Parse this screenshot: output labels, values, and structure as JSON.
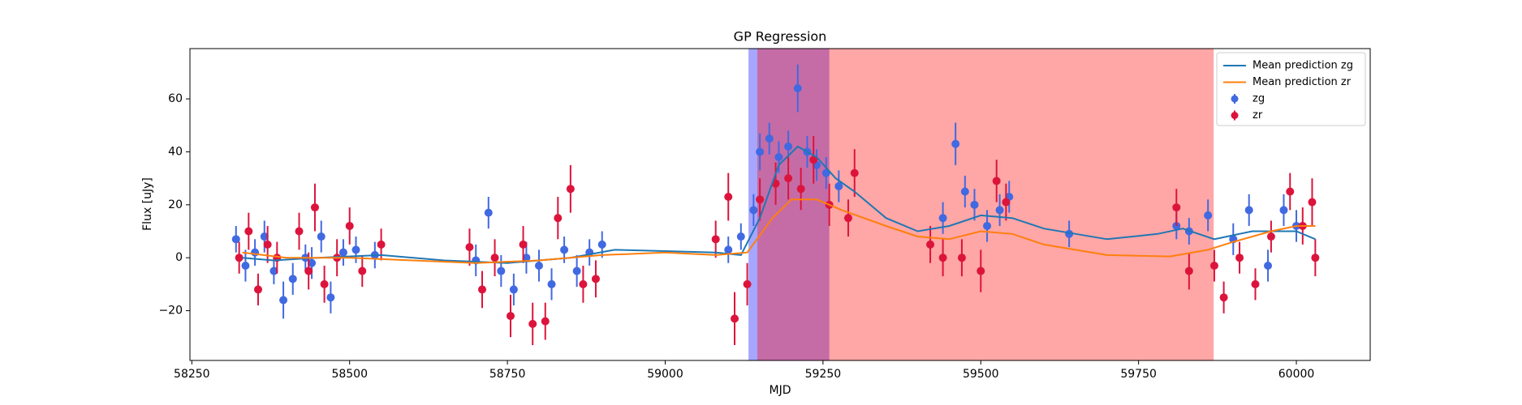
{
  "chart_data": {
    "type": "errorbar",
    "title": "GP Regression",
    "xlabel": "MJD",
    "ylabel": "Flux [uJy]",
    "xlim": [
      58247,
      60117
    ],
    "ylim": [
      -38.8,
      79
    ],
    "xticks": [
      58250,
      58500,
      58750,
      59000,
      59250,
      59500,
      59750,
      60000
    ],
    "yticks": [
      {
        "value": -20,
        "label": "−20"
      },
      0,
      20,
      40,
      60
    ],
    "legend": "upper right",
    "spans": [
      {
        "color": "#0000ff",
        "opacity": 0.35,
        "x": [
          59132,
          59260
        ]
      },
      {
        "color": "#ff0000",
        "opacity": 0.35,
        "x": [
          59146,
          59869
        ]
      }
    ],
    "lines": [
      {
        "name": "Mean prediction zg",
        "color": "#1f77b4",
        "x": [
          58330,
          58380,
          58450,
          58550,
          58650,
          58750,
          58850,
          58920,
          59000,
          59080,
          59120,
          59150,
          59180,
          59210,
          59240,
          59270,
          59300,
          59350,
          59400,
          59450,
          59500,
          59550,
          59600,
          59700,
          59780,
          59820,
          59870,
          59930,
          60000,
          60030
        ],
        "values": [
          0,
          -1,
          0,
          1,
          -1,
          -2,
          0,
          3,
          2.5,
          2,
          1,
          15,
          35,
          42,
          38,
          30,
          25,
          15,
          10,
          12,
          16,
          15,
          11,
          7,
          9,
          11,
          7,
          10,
          10,
          7
        ]
      },
      {
        "name": "Mean prediction zr",
        "color": "#ff7f0e",
        "x": [
          58330,
          58400,
          58500,
          58600,
          58700,
          58800,
          58900,
          59000,
          59080,
          59130,
          59170,
          59200,
          59240,
          59280,
          59350,
          59400,
          59450,
          59500,
          59550,
          59600,
          59700,
          59800,
          59860,
          59900,
          59960,
          60000,
          60030
        ],
        "values": [
          2,
          0,
          0,
          -1,
          -2,
          -1,
          1,
          2,
          1,
          2,
          15,
          22,
          22,
          18,
          12,
          8,
          7,
          10,
          9,
          5,
          1,
          0.5,
          3,
          6,
          10,
          12,
          12
        ]
      }
    ],
    "series": [
      {
        "name": "zg",
        "color": "#4169e1",
        "x": [
          58320,
          58335,
          58350,
          58365,
          58380,
          58395,
          58410,
          58430,
          58440,
          58455,
          58470,
          58490,
          58510,
          58540,
          58700,
          58720,
          58740,
          58760,
          58780,
          58800,
          58820,
          58840,
          58860,
          58880,
          58900,
          59100,
          59120,
          59140,
          59150,
          59165,
          59180,
          59195,
          59210,
          59225,
          59240,
          59255,
          59275,
          59440,
          59460,
          59475,
          59490,
          59510,
          59530,
          59545,
          59640,
          59810,
          59830,
          59860,
          59900,
          59925,
          59955,
          59980,
          60000
        ],
        "values": [
          7,
          -3,
          2,
          8,
          -5,
          -16,
          -8,
          0,
          -2,
          8,
          -15,
          2,
          3,
          1,
          -1,
          17,
          -5,
          -12,
          0,
          -3,
          -10,
          3,
          -5,
          2,
          5,
          3,
          8,
          18,
          40,
          45,
          38,
          42,
          64,
          40,
          35,
          32,
          27,
          15,
          43,
          25,
          20,
          12,
          18,
          23,
          9,
          12,
          10,
          16,
          7,
          18,
          -3,
          18,
          12
        ],
        "errors": [
          5,
          6,
          5,
          6,
          5,
          7,
          6,
          5,
          6,
          6,
          6,
          5,
          5,
          5,
          6,
          6,
          6,
          6,
          6,
          6,
          6,
          5,
          6,
          5,
          5,
          5,
          5,
          6,
          7,
          6,
          6,
          6,
          9,
          6,
          6,
          6,
          6,
          6,
          8,
          6,
          6,
          6,
          6,
          6,
          5,
          5,
          5,
          6,
          6,
          6,
          6,
          6,
          6
        ]
      },
      {
        "name": "zr",
        "color": "#dc143c",
        "x": [
          58325,
          58340,
          58355,
          58370,
          58385,
          58420,
          58435,
          58445,
          58460,
          58480,
          58500,
          58520,
          58550,
          58690,
          58710,
          58730,
          58755,
          58775,
          58790,
          58810,
          58830,
          58850,
          58870,
          58890,
          59080,
          59100,
          59110,
          59130,
          59150,
          59175,
          59195,
          59215,
          59235,
          59260,
          59290,
          59300,
          59420,
          59440,
          59470,
          59500,
          59525,
          59540,
          59810,
          59830,
          59870,
          59885,
          59910,
          59935,
          59960,
          59990,
          60010,
          60025,
          60030
        ],
        "values": [
          0,
          10,
          -12,
          5,
          0,
          10,
          -5,
          19,
          -10,
          0,
          12,
          -5,
          5,
          4,
          -12,
          0,
          -22,
          5,
          -25,
          -24,
          15,
          26,
          -10,
          -8,
          7,
          23,
          -23,
          -10,
          22,
          28,
          30,
          26,
          37,
          20,
          15,
          32,
          5,
          0,
          0,
          -5,
          29,
          21,
          19,
          -5,
          -3,
          -15,
          0,
          -10,
          8,
          25,
          12,
          21,
          0
        ],
        "errors": [
          6,
          7,
          6,
          7,
          6,
          7,
          7,
          9,
          7,
          7,
          7,
          6,
          6,
          7,
          7,
          7,
          8,
          7,
          8,
          7,
          8,
          9,
          7,
          7,
          7,
          9,
          10,
          8,
          8,
          8,
          8,
          8,
          9,
          8,
          7,
          9,
          7,
          7,
          7,
          8,
          8,
          7,
          7,
          7,
          6,
          6,
          6,
          6,
          6,
          7,
          7,
          9,
          7
        ]
      }
    ]
  }
}
